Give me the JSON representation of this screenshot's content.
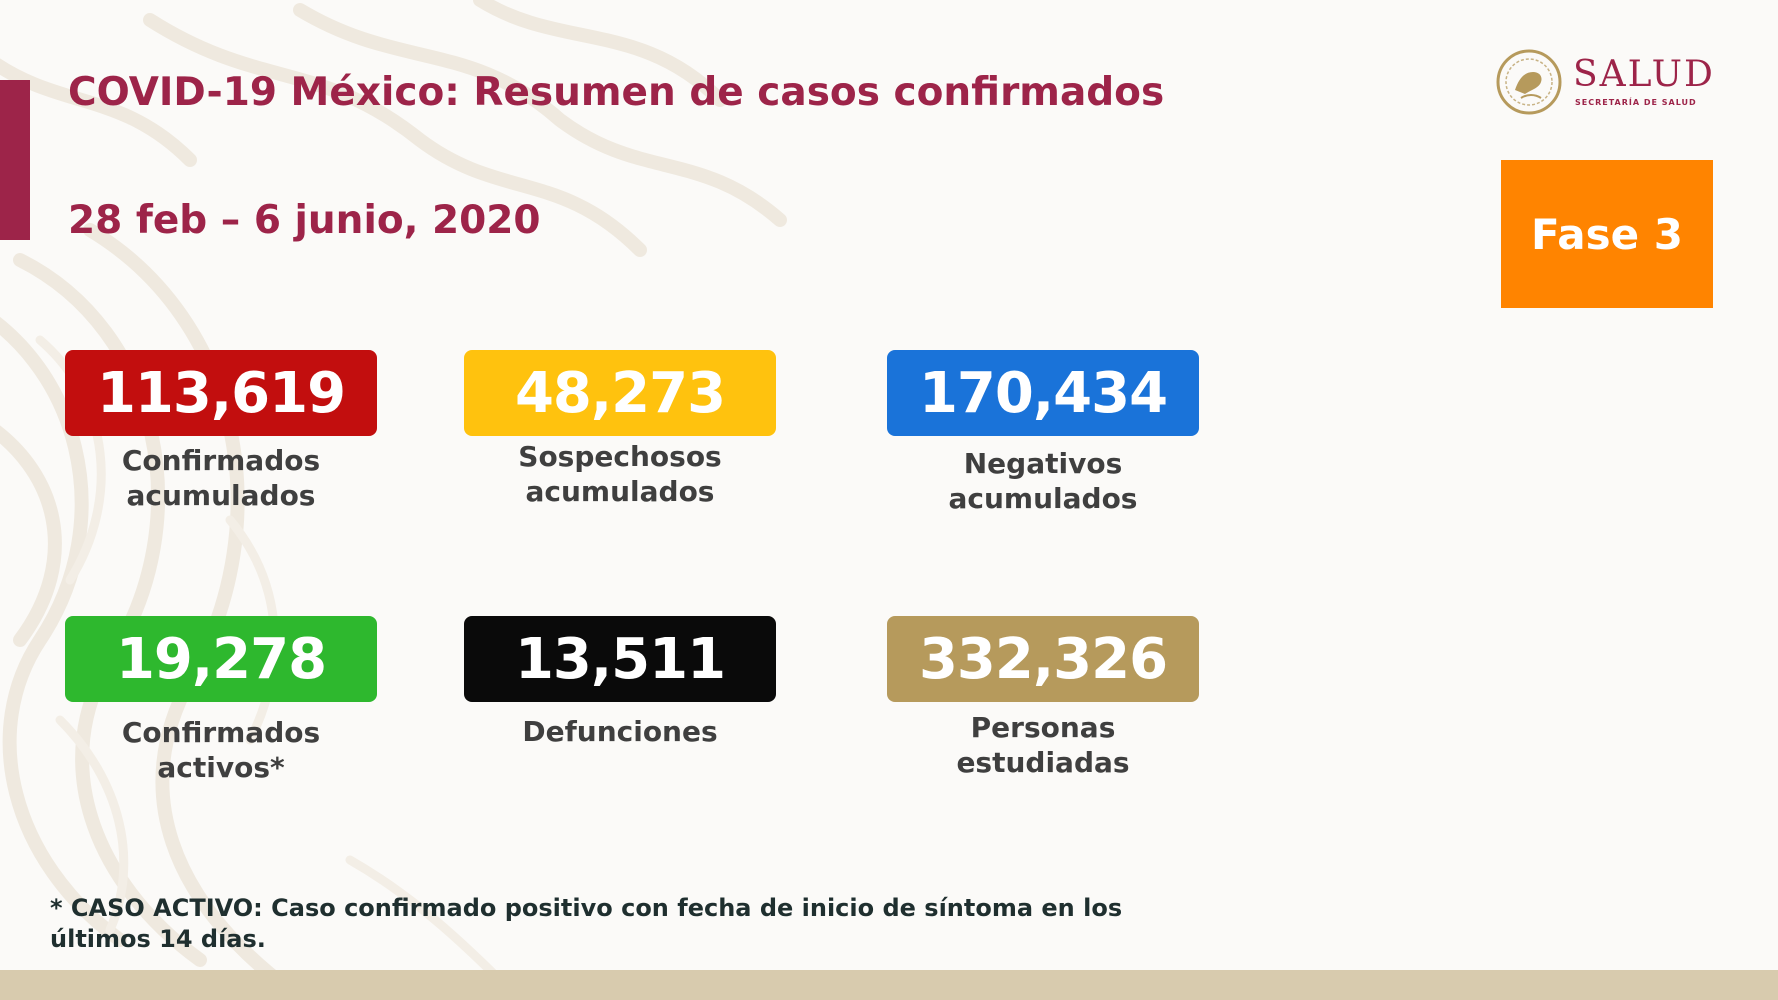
{
  "header": {
    "title": "COVID-19 México: Resumen de casos confirmados",
    "date_range": "28 feb – 6 junio, 2020"
  },
  "logo": {
    "text": "SALUD",
    "subtext": "SECRETARÍA DE SALUD",
    "seal_icon": "eagle-seal-icon"
  },
  "phase_badge": {
    "label": "Fase 3",
    "color": "#ff8400"
  },
  "stats": [
    {
      "value": "113,619",
      "label_lines": [
        "Confirmados",
        "acumulados"
      ],
      "color": "#c20e0e"
    },
    {
      "value": "48,273",
      "label_lines": [
        "Sospechosos",
        "acumulados"
      ],
      "color": "#ffc20e"
    },
    {
      "value": "170,434",
      "label_lines": [
        "Negativos",
        "acumulados"
      ],
      "color": "#1a73d9"
    },
    {
      "value": "19,278",
      "label_lines": [
        "Confirmados",
        "activos*"
      ],
      "color": "#2eb82e"
    },
    {
      "value": "13,511",
      "label_lines": [
        "Defunciones"
      ],
      "color": "#0a0a0a"
    },
    {
      "value": "332,326",
      "label_lines": [
        "Personas",
        "estudiadas"
      ],
      "color": "#b69a5c"
    }
  ],
  "footnote": {
    "lines": [
      "* CASO ACTIVO: Caso confirmado positivo con fecha de inicio de síntoma en los",
      "últimos 14 días."
    ]
  },
  "colors": {
    "brand": "#9d2449",
    "bottom_band": "#d8cbae"
  }
}
